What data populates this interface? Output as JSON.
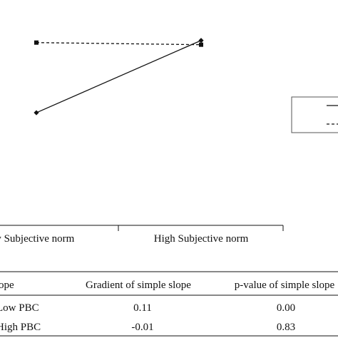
{
  "chart_data": {
    "type": "line",
    "title": "",
    "xlabel": "",
    "ylabel": "",
    "categories": [
      "Low Subjective norm",
      "High Subjective norm"
    ],
    "x_tick_labels": [
      "w Subjective norm",
      "High Subjective norm"
    ],
    "ylim": [
      0,
      1
    ],
    "grid": false,
    "legend": {
      "placement": "right",
      "entries": [
        {
          "line_style": "solid"
        },
        {
          "line_style": "dashed"
        }
      ]
    },
    "series": [
      {
        "line_style": "solid",
        "marker": "diamond",
        "color": "#111111",
        "values": [
          0.53,
          0.87
        ]
      },
      {
        "line_style": "dashed",
        "marker": "square",
        "color": "#111111",
        "values": [
          0.86,
          0.85
        ]
      }
    ]
  },
  "table": {
    "headers": [
      "ope",
      "Gradient of simple slope",
      "p-value of simple slope"
    ],
    "rows": [
      [
        "Low PBC",
        "0.11",
        "0.00"
      ],
      [
        "High PBC",
        "-0.01",
        "0.83"
      ]
    ]
  }
}
